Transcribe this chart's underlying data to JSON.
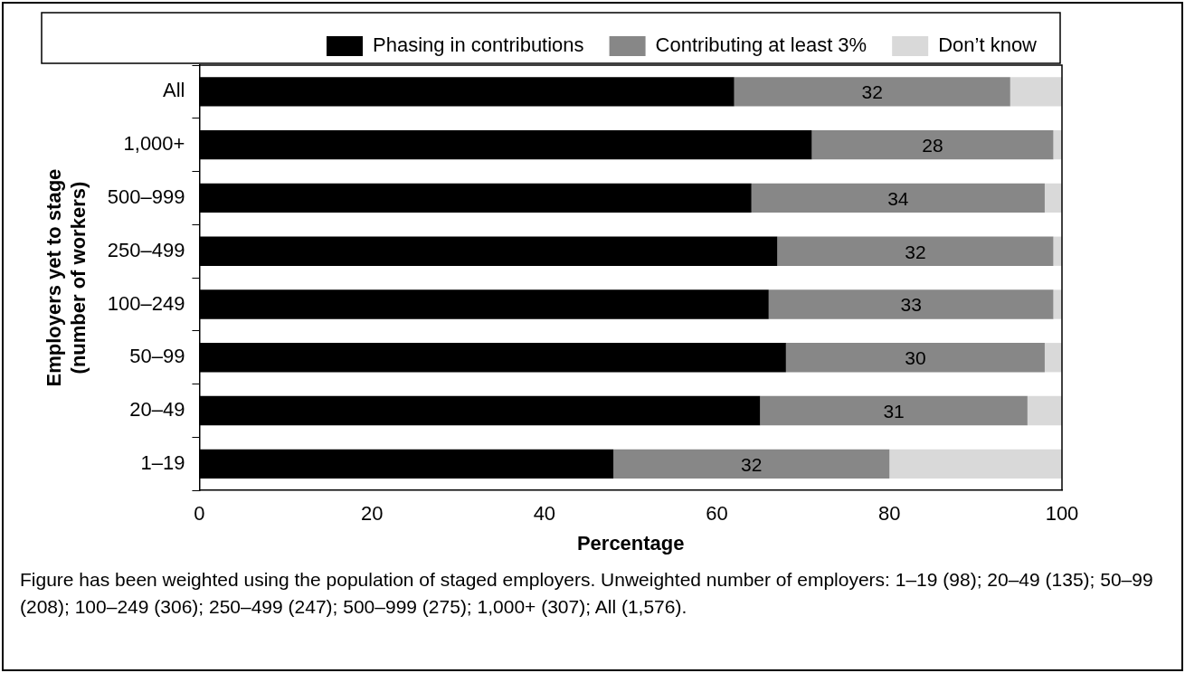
{
  "chart_data": {
    "type": "bar",
    "orientation": "horizontal",
    "stacked": true,
    "categories": [
      "All",
      "1,000+",
      "500–999",
      "250–499",
      "100–249",
      "50–99",
      "20–49",
      "1–19"
    ],
    "series": [
      {
        "name": "Phasing in contributions",
        "color": "#000000",
        "values": [
          62,
          71,
          64,
          67,
          66,
          68,
          65,
          48
        ]
      },
      {
        "name": "Contributing at least 3%",
        "color": "#878787",
        "values": [
          32,
          28,
          34,
          32,
          33,
          30,
          31,
          32
        ],
        "value_labels": [
          "32",
          "28",
          "34",
          "32",
          "33",
          "30",
          "31",
          "32"
        ]
      },
      {
        "name": "Don’t know",
        "color": "#d9d9d9",
        "values": [
          6,
          1,
          2,
          1,
          1,
          2,
          4,
          20
        ]
      }
    ],
    "xlim": [
      0,
      100
    ],
    "xticks": [
      0,
      20,
      40,
      60,
      80,
      100
    ],
    "xlabel": "Percentage",
    "ylabel": "Employers yet to stage\n(number of workers)",
    "legend": "top",
    "grid": false,
    "annotations": [
      "Figure has been weighted using the population of staged employers. Unweighted number of employers: 1–19 (98); 20–49 (135); 50–99 (208); 100–249 (306); 250–499 (247); 500–999 (275); 1,000+ (307); All (1,576)."
    ]
  }
}
